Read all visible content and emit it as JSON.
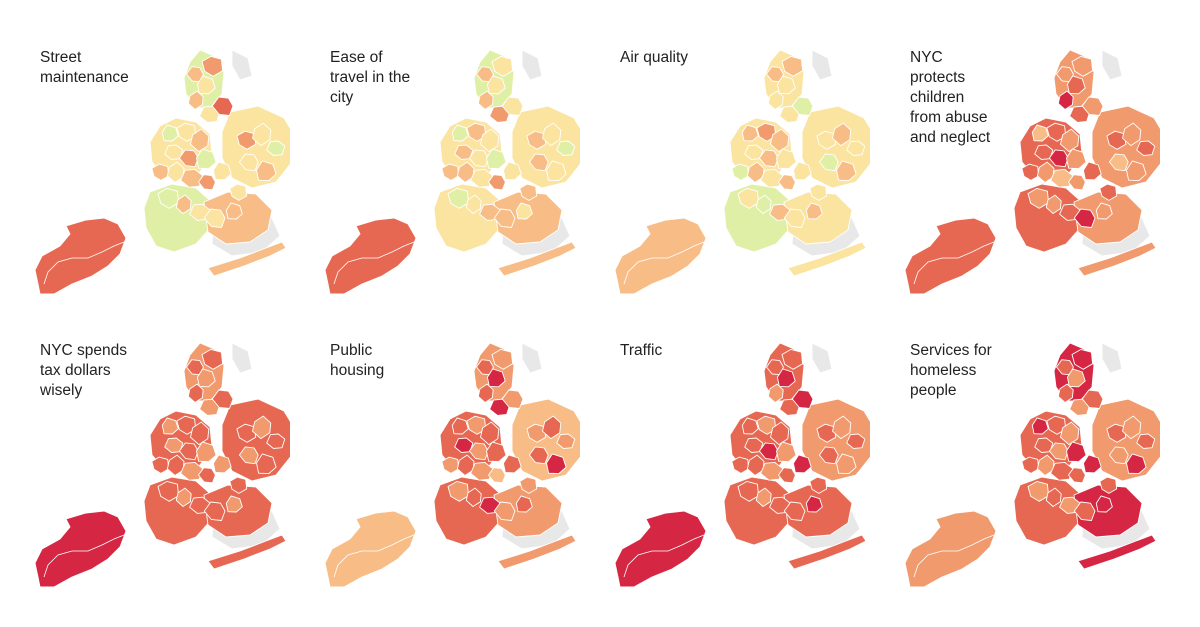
{
  "panels": [
    {
      "title": "Street\nmaintenance",
      "island_level": 4,
      "boroughs": [
        1,
        0,
        0,
        1,
        2
      ],
      "center": [
        2,
        1,
        3,
        2,
        1,
        4,
        0,
        1,
        2,
        1,
        3,
        0,
        2,
        1,
        2,
        3,
        1,
        0,
        2,
        1,
        1,
        2,
        3,
        1,
        0,
        1,
        2,
        1
      ]
    },
    {
      "title": "Ease of\ntravel in the\ncity",
      "island_level": 4,
      "boroughs": [
        1,
        0,
        1,
        1,
        2
      ],
      "center": [
        2,
        1,
        1,
        2,
        3,
        1,
        0,
        2,
        1,
        2,
        1,
        0,
        2,
        2,
        1,
        3,
        1,
        0,
        1,
        2,
        2,
        1,
        2,
        1,
        0,
        2,
        1,
        2
      ]
    },
    {
      "title": "Air quality",
      "island_level": 2,
      "boroughs": [
        1,
        1,
        0,
        1,
        1
      ],
      "center": [
        2,
        1,
        2,
        1,
        1,
        0,
        2,
        3,
        2,
        1,
        2,
        1,
        0,
        2,
        1,
        2,
        1,
        1,
        0,
        2,
        1,
        2,
        1,
        2,
        1,
        0,
        2,
        1
      ]
    },
    {
      "title": "NYC\nprotects\nchildren\nfrom abuse\nand neglect",
      "island_level": 4,
      "boroughs": [
        4,
        3,
        4,
        3,
        3
      ],
      "center": [
        3,
        4,
        3,
        5,
        4,
        3,
        2,
        4,
        3,
        4,
        5,
        3,
        4,
        3,
        2,
        3,
        4,
        3,
        3,
        4,
        5,
        3,
        4,
        3,
        4,
        2,
        3,
        4
      ]
    },
    {
      "title": "NYC spends\ntax dollars\nwisely",
      "island_level": 5,
      "boroughs": [
        4,
        3,
        4,
        4,
        4
      ],
      "center": [
        4,
        3,
        4,
        4,
        3,
        4,
        3,
        4,
        4,
        3,
        4,
        3,
        4,
        4,
        3,
        4,
        3,
        4,
        3,
        4,
        4,
        3,
        4,
        3,
        4,
        3,
        4,
        4
      ]
    },
    {
      "title": "Public\nhousing",
      "island_level": 2,
      "boroughs": [
        4,
        3,
        4,
        2,
        3
      ],
      "center": [
        4,
        5,
        3,
        4,
        5,
        3,
        4,
        3,
        4,
        5,
        3,
        4,
        3,
        4,
        3,
        2,
        4,
        3,
        4,
        5,
        3,
        4,
        3,
        4,
        3,
        4,
        5,
        3
      ]
    },
    {
      "title": "Traffic",
      "island_level": 5,
      "boroughs": [
        4,
        4,
        4,
        3,
        4
      ],
      "center": [
        4,
        5,
        4,
        3,
        4,
        5,
        4,
        3,
        4,
        4,
        5,
        3,
        4,
        4,
        3,
        4,
        5,
        4,
        3,
        4,
        4,
        5,
        4,
        3,
        4,
        4,
        3,
        4
      ]
    },
    {
      "title": "Services for\nhomeless\npeople",
      "island_level": 3,
      "boroughs": [
        4,
        5,
        4,
        3,
        5
      ],
      "center": [
        4,
        3,
        5,
        4,
        3,
        4,
        5,
        4,
        3,
        4,
        3,
        5,
        4,
        3,
        4,
        4,
        5,
        3,
        4,
        3,
        4,
        5,
        4,
        3,
        4,
        3,
        5,
        4
      ]
    }
  ],
  "colors": {
    "scale": [
      "#dff0a6",
      "#fbe3a0",
      "#f8bd86",
      "#f09a6d",
      "#e66852",
      "#d52744"
    ],
    "no_data": "#e8e8e8"
  }
}
